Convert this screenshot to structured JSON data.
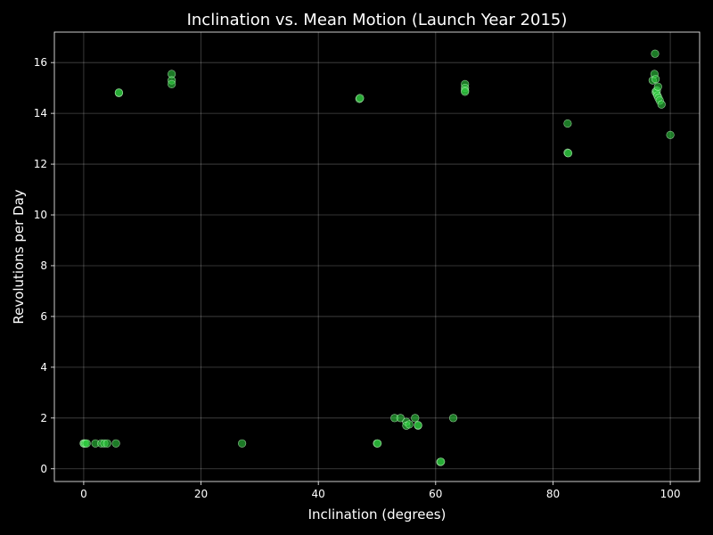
{
  "chart_data": {
    "type": "scatter",
    "title": "Inclination vs. Mean Motion (Launch Year 2015)",
    "xlabel": "Inclination (degrees)",
    "ylabel": "Revolutions per Day",
    "xlim": [
      -5,
      105
    ],
    "ylim": [
      -0.5,
      17.2
    ],
    "xticks": [
      0,
      20,
      40,
      60,
      80,
      100
    ],
    "yticks": [
      0,
      2,
      4,
      6,
      8,
      10,
      12,
      14,
      16
    ],
    "grid": true,
    "colors": {
      "background": "#000000",
      "marker_fill": "#2ecc40",
      "marker_edge": "#c8ffc8",
      "text": "#ffffff"
    },
    "points": [
      {
        "x": 0.0,
        "y": 1.0
      },
      {
        "x": 0.1,
        "y": 1.0
      },
      {
        "x": 0.3,
        "y": 1.0
      },
      {
        "x": 0.5,
        "y": 1.0
      },
      {
        "x": 2.0,
        "y": 1.0
      },
      {
        "x": 3.0,
        "y": 1.0
      },
      {
        "x": 3.5,
        "y": 1.0
      },
      {
        "x": 4.0,
        "y": 1.0
      },
      {
        "x": 5.5,
        "y": 1.0
      },
      {
        "x": 6.0,
        "y": 14.8
      },
      {
        "x": 6.0,
        "y": 14.82
      },
      {
        "x": 15.0,
        "y": 15.55
      },
      {
        "x": 15.0,
        "y": 15.3
      },
      {
        "x": 15.0,
        "y": 15.15
      },
      {
        "x": 27.0,
        "y": 1.0
      },
      {
        "x": 47.0,
        "y": 14.57
      },
      {
        "x": 47.1,
        "y": 14.6
      },
      {
        "x": 50.0,
        "y": 1.0
      },
      {
        "x": 50.1,
        "y": 1.0
      },
      {
        "x": 53.0,
        "y": 2.0
      },
      {
        "x": 54.0,
        "y": 2.0
      },
      {
        "x": 55.0,
        "y": 1.85
      },
      {
        "x": 55.0,
        "y": 1.7
      },
      {
        "x": 55.5,
        "y": 1.75
      },
      {
        "x": 56.5,
        "y": 2.0
      },
      {
        "x": 57.0,
        "y": 1.7
      },
      {
        "x": 57.0,
        "y": 1.72
      },
      {
        "x": 60.8,
        "y": 0.27
      },
      {
        "x": 60.9,
        "y": 0.28
      },
      {
        "x": 63.0,
        "y": 2.0
      },
      {
        "x": 65.0,
        "y": 15.15
      },
      {
        "x": 65.0,
        "y": 15.0
      },
      {
        "x": 65.0,
        "y": 14.9
      },
      {
        "x": 65.0,
        "y": 14.85
      },
      {
        "x": 82.5,
        "y": 13.6
      },
      {
        "x": 82.5,
        "y": 12.45
      },
      {
        "x": 82.6,
        "y": 12.43
      },
      {
        "x": 97.0,
        "y": 15.3
      },
      {
        "x": 97.3,
        "y": 15.55
      },
      {
        "x": 97.4,
        "y": 16.35
      },
      {
        "x": 97.5,
        "y": 15.35
      },
      {
        "x": 97.5,
        "y": 14.85
      },
      {
        "x": 97.6,
        "y": 14.8
      },
      {
        "x": 97.7,
        "y": 14.9
      },
      {
        "x": 97.8,
        "y": 14.7
      },
      {
        "x": 97.9,
        "y": 15.05
      },
      {
        "x": 98.0,
        "y": 14.6
      },
      {
        "x": 98.2,
        "y": 14.5
      },
      {
        "x": 98.5,
        "y": 14.35
      },
      {
        "x": 100.0,
        "y": 13.15
      }
    ]
  }
}
